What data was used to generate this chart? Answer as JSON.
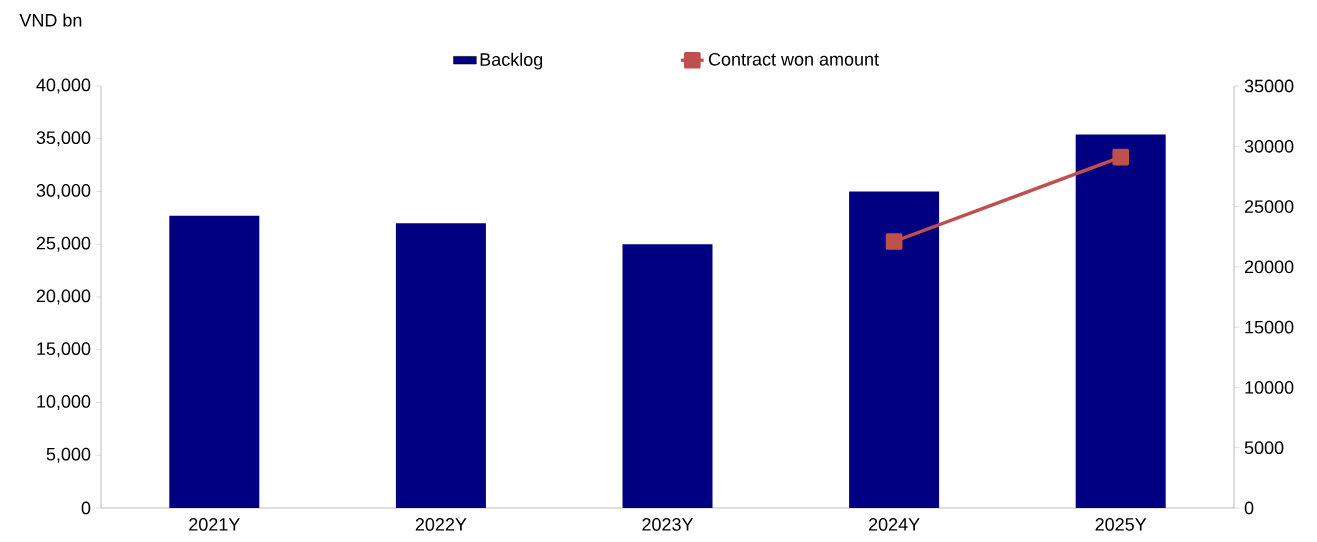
{
  "chart_data": {
    "type": "bar",
    "ylabel": "VND bn",
    "categories": [
      "2021Y",
      "2022Y",
      "2023Y",
      "2024Y",
      "2025Y"
    ],
    "series": [
      {
        "name": "Backlog",
        "color": "#000080",
        "values": [
          27700,
          27000,
          25000,
          30000,
          35400
        ]
      },
      {
        "name": "Contract won amount",
        "type": "line",
        "axis": "y2",
        "color": "#c0504d",
        "marker": "square",
        "line_style": "solid",
        "values": [
          null,
          null,
          null,
          22100,
          29100
        ]
      }
    ],
    "ylim": [
      0,
      40000
    ],
    "yticks": [
      {
        "value": 0,
        "label": "0"
      },
      {
        "value": 5000,
        "label": "5,000"
      },
      {
        "value": 10000,
        "label": "10,000"
      },
      {
        "value": 15000,
        "label": "15,000"
      },
      {
        "value": 20000,
        "label": "20,000"
      },
      {
        "value": 25000,
        "label": "25,000"
      },
      {
        "value": 30000,
        "label": "30,000"
      },
      {
        "value": 35000,
        "label": "35,000"
      },
      {
        "value": 40000,
        "label": "40,000"
      }
    ],
    "y2lim": [
      0,
      35000
    ],
    "y2ticks": [
      0,
      5000,
      10000,
      15000,
      20000,
      25000,
      30000,
      35000
    ],
    "legend": "top",
    "grid": false
  }
}
